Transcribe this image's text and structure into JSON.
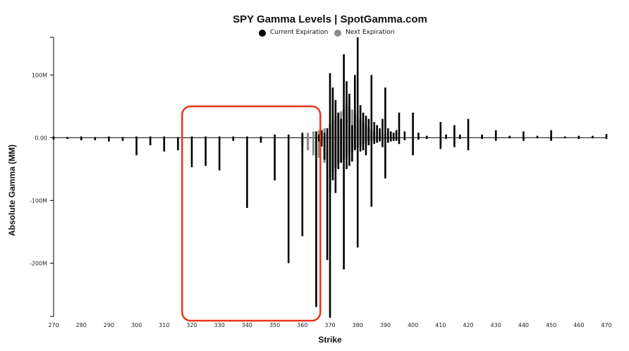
{
  "chart_data": {
    "type": "bar",
    "title": "SPY Gamma Levels | SpotGamma.com",
    "xlabel": "Strike",
    "ylabel": "Absolute Gamma (MM)",
    "xlim": [
      270,
      470
    ],
    "ylim": [
      -285,
      160
    ],
    "x_ticks": [
      "270",
      "280",
      "290",
      "300",
      "310",
      "320",
      "330",
      "340",
      "350",
      "360",
      "370",
      "380",
      "390",
      "400",
      "410",
      "420",
      "430",
      "440",
      "450",
      "460",
      "470"
    ],
    "y_ticks": [
      {
        "value": 100,
        "label": "100M"
      },
      {
        "value": 0,
        "label": "0.00"
      },
      {
        "value": -100,
        "label": "-100M"
      },
      {
        "value": -200,
        "label": "-200M"
      }
    ],
    "legend_position": "top-center",
    "colors": {
      "current": "#000000",
      "next": "#8c8c8c",
      "highlight": "#e8341c"
    },
    "series": [
      {
        "name": "Current Expiration",
        "color": "#000000",
        "points": [
          [
            270,
            2,
            -3
          ],
          [
            275,
            1,
            -2
          ],
          [
            280,
            2,
            -4
          ],
          [
            285,
            1,
            -4
          ],
          [
            290,
            2,
            -6
          ],
          [
            295,
            1,
            -5
          ],
          [
            300,
            2,
            -28
          ],
          [
            305,
            2,
            -12
          ],
          [
            310,
            2,
            -22
          ],
          [
            315,
            1,
            -20
          ],
          [
            320,
            2,
            -47
          ],
          [
            325,
            2,
            -45
          ],
          [
            330,
            2,
            -52
          ],
          [
            335,
            2,
            -5
          ],
          [
            340,
            2,
            -112
          ],
          [
            345,
            2,
            -8
          ],
          [
            350,
            5,
            -68
          ],
          [
            355,
            5,
            -200
          ],
          [
            360,
            8,
            -157
          ],
          [
            365,
            10,
            -270
          ],
          [
            366,
            5,
            -6
          ],
          [
            367,
            12,
            -14
          ],
          [
            368,
            8,
            -35
          ],
          [
            369,
            15,
            -195
          ],
          [
            370,
            103,
            -287
          ],
          [
            371,
            80,
            -68
          ],
          [
            372,
            60,
            -88
          ],
          [
            373,
            40,
            -50
          ],
          [
            374,
            30,
            -40
          ],
          [
            375,
            133,
            -210
          ],
          [
            376,
            90,
            -50
          ],
          [
            377,
            70,
            -45
          ],
          [
            378,
            20,
            -38
          ],
          [
            379,
            100,
            -20
          ],
          [
            380,
            160,
            -175
          ],
          [
            381,
            52,
            -22
          ],
          [
            382,
            40,
            -20
          ],
          [
            383,
            35,
            -28
          ],
          [
            384,
            30,
            -12
          ],
          [
            385,
            100,
            -110
          ],
          [
            386,
            25,
            -10
          ],
          [
            387,
            20,
            -8
          ],
          [
            388,
            15,
            -6
          ],
          [
            389,
            30,
            -15
          ],
          [
            390,
            80,
            -65
          ],
          [
            391,
            15,
            -8
          ],
          [
            392,
            10,
            -6
          ],
          [
            393,
            8,
            -5
          ],
          [
            394,
            12,
            -5
          ],
          [
            395,
            40,
            -10
          ],
          [
            397,
            10,
            -4
          ],
          [
            400,
            40,
            -28
          ],
          [
            402,
            8,
            -3
          ],
          [
            405,
            3,
            -2
          ],
          [
            410,
            25,
            -18
          ],
          [
            412,
            5,
            -2
          ],
          [
            415,
            20,
            -15
          ],
          [
            417,
            5,
            -2
          ],
          [
            420,
            30,
            -20
          ],
          [
            425,
            5,
            -2
          ],
          [
            430,
            12,
            -5
          ],
          [
            435,
            3,
            -1
          ],
          [
            440,
            10,
            -5
          ],
          [
            445,
            3,
            -1
          ],
          [
            450,
            12,
            -5
          ],
          [
            455,
            2,
            -1
          ],
          [
            460,
            3,
            -2
          ],
          [
            465,
            3,
            -1
          ],
          [
            470,
            6,
            -2
          ]
        ]
      },
      {
        "name": "Next Expiration",
        "color": "#8c8c8c",
        "points": [
          [
            360,
            6,
            -15
          ],
          [
            362,
            8,
            -20
          ],
          [
            364,
            10,
            -28
          ],
          [
            366,
            12,
            -32
          ],
          [
            368,
            15,
            -40
          ],
          [
            370,
            22,
            -88
          ],
          [
            371,
            28,
            -55
          ],
          [
            372,
            35,
            -48
          ],
          [
            373,
            40,
            -42
          ],
          [
            374,
            42,
            -38
          ],
          [
            375,
            45,
            -35
          ],
          [
            376,
            55,
            -30
          ],
          [
            377,
            50,
            -25
          ],
          [
            378,
            45,
            -22
          ],
          [
            379,
            40,
            -18
          ],
          [
            380,
            35,
            -15
          ],
          [
            381,
            30,
            -12
          ],
          [
            382,
            25,
            -10
          ],
          [
            383,
            20,
            -8
          ],
          [
            384,
            15,
            -6
          ],
          [
            385,
            12,
            -5
          ],
          [
            386,
            10,
            -4
          ],
          [
            388,
            8,
            -3
          ],
          [
            390,
            6,
            -3
          ]
        ]
      }
    ],
    "highlight_region": {
      "x_range": [
        316.5,
        366.5
      ],
      "y_range": [
        -285,
        50
      ]
    }
  }
}
